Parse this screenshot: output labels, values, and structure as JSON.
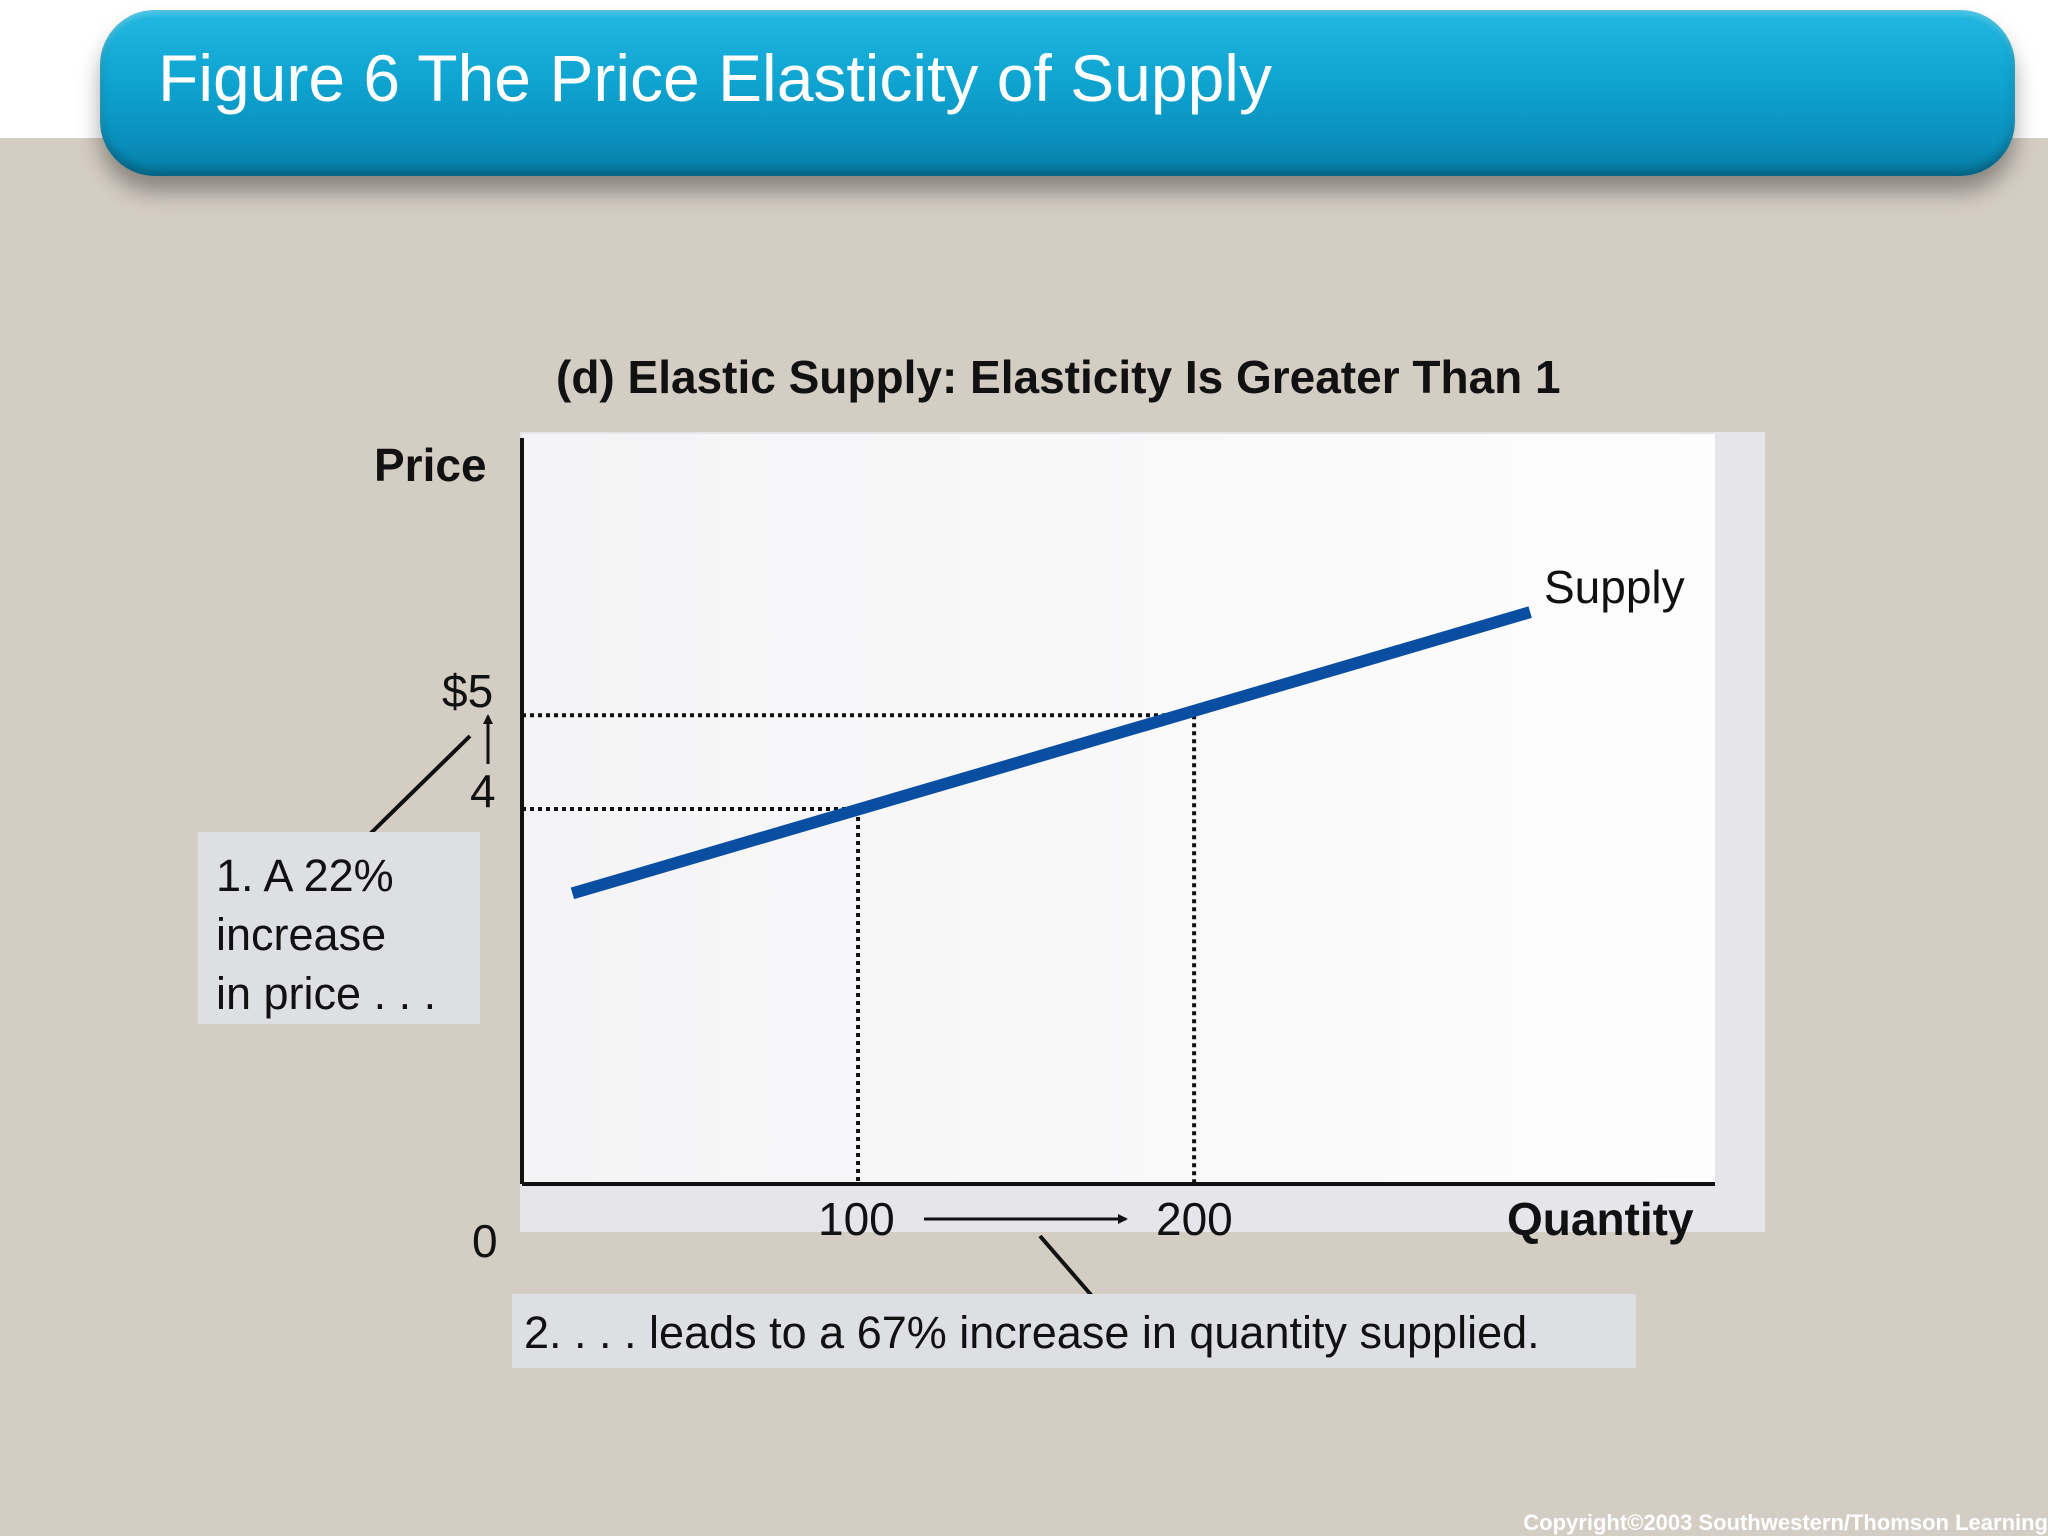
{
  "slide": {
    "title": "Figure 6 The Price Elasticity of Supply",
    "copyright": "Copyright©2003  Southwestern/Thomson Learning"
  },
  "chart_data": {
    "type": "line",
    "title": "(d) Elastic Supply: Elasticity Is Greater Than 1",
    "xlabel": "Quantity",
    "ylabel": "Price",
    "origin_label": "0",
    "x_ticks": [
      {
        "value": 100,
        "label": "100"
      },
      {
        "value": 200,
        "label": "200"
      }
    ],
    "y_ticks": [
      {
        "value": 4,
        "label": "4"
      },
      {
        "value": 5,
        "label": "$5"
      }
    ],
    "xlim": [
      0,
      355
    ],
    "ylim": [
      0,
      8
    ],
    "grid": false,
    "series": [
      {
        "name": "Supply",
        "color": "#0a4ea2",
        "x": [
          15,
          300
        ],
        "y": [
          3.1,
          6.1
        ]
      }
    ],
    "reference_points": [
      {
        "x": 100,
        "y": 4
      },
      {
        "x": 200,
        "y": 5
      }
    ],
    "annotations": {
      "price_increase": [
        "1. A 22%",
        "increase",
        "in price . . ."
      ],
      "quantity_increase": "2. . . . leads to a 67% increase in quantity supplied."
    }
  }
}
